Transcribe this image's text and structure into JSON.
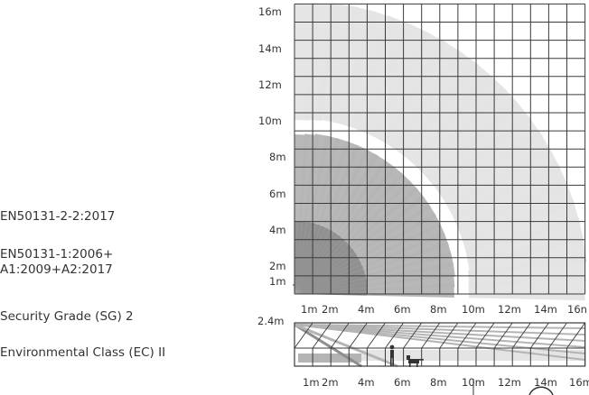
{
  "standards": [
    "EN50131-2-2:2017",
    "EN50131-1:2006+\nA1:2009+A2:2017",
    "Security Grade (SG) 2",
    "Environmental Class (EC) II"
  ],
  "top_view": {
    "y_labels": [
      "16m",
      "14m",
      "12m",
      "10m",
      "8m",
      "6m",
      "4m",
      "2m",
      "1m"
    ],
    "x_labels": [
      "1m",
      "2m",
      "4m",
      "6m",
      "8m",
      "10m",
      "12m",
      "14m",
      "16n"
    ]
  },
  "side_view": {
    "height_label": "2.4m",
    "x_labels": [
      "1m",
      "2m",
      "4m",
      "6m",
      "8m",
      "10m",
      "12m",
      "14m",
      "16m"
    ]
  },
  "colors": {
    "grid": "#3a3a3a",
    "zone_far": "#e4e4e4",
    "zone_mid": "#b4b4b4",
    "zone_near": "#8e8e8e"
  }
}
